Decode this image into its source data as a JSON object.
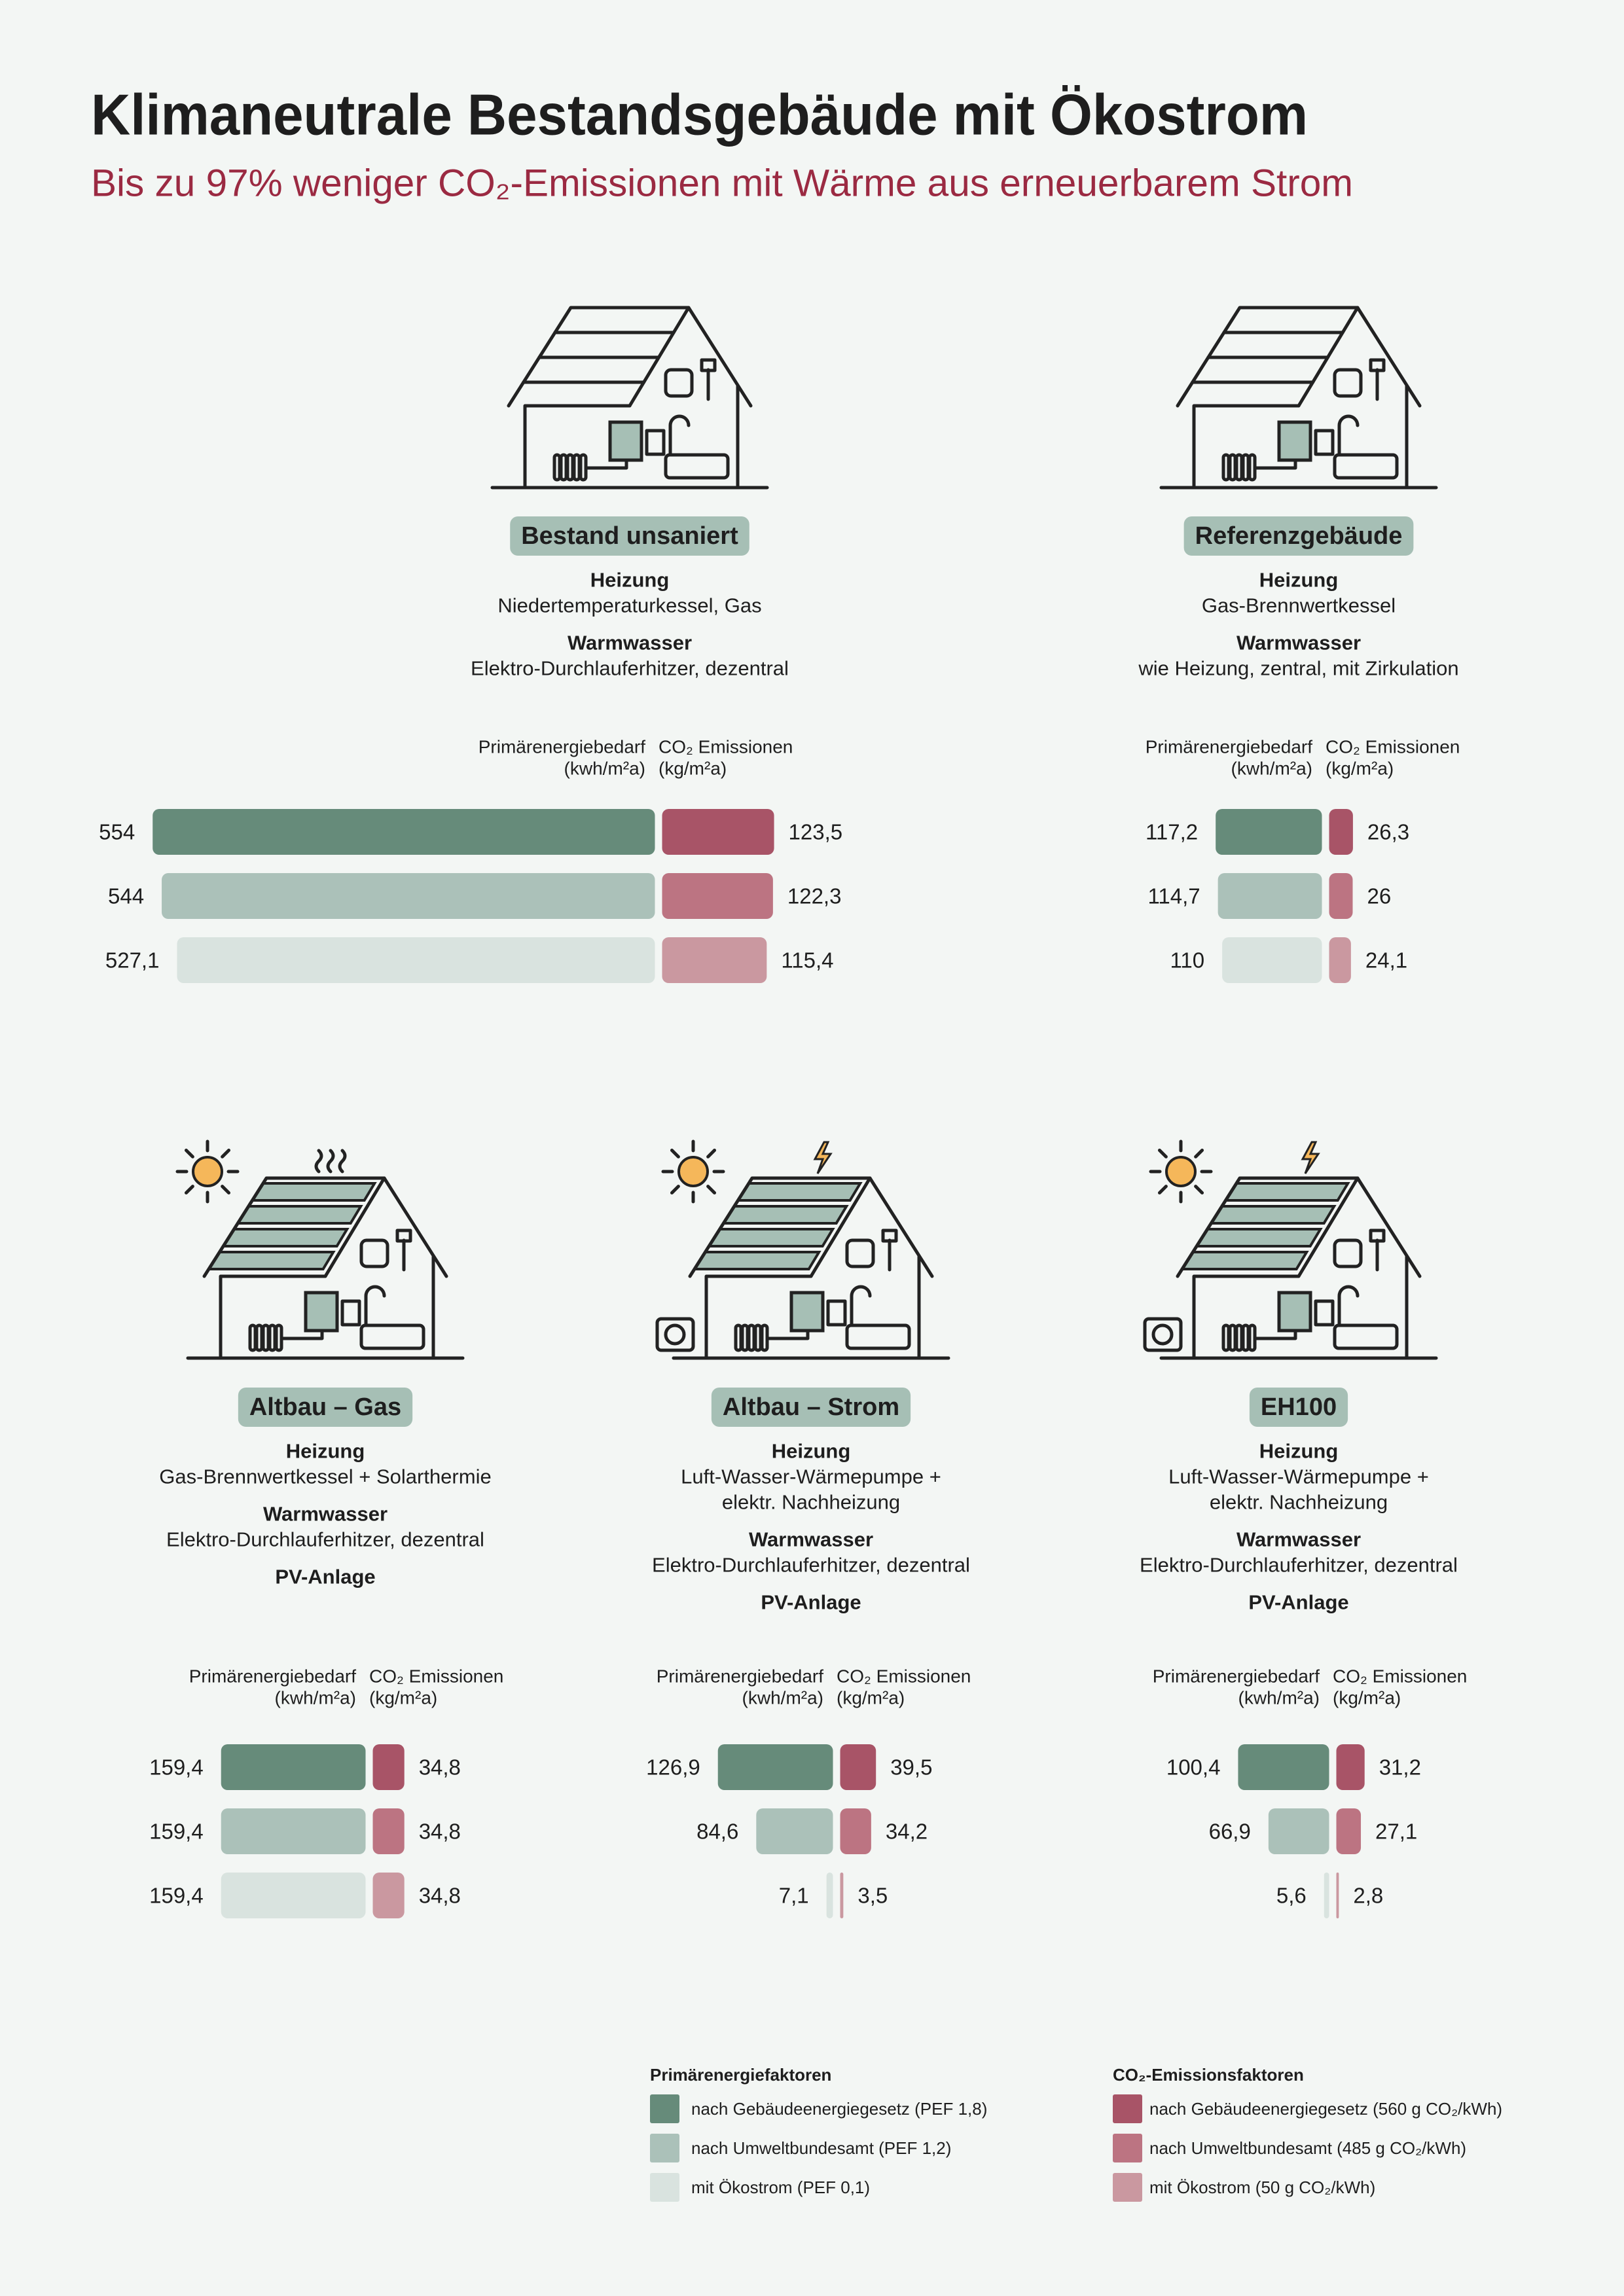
{
  "header": {
    "title": "Klimaneutrale Bestandsgebäude mit Ökostrom",
    "subtitle": "Bis zu 97% weniger CO₂-Emissionen mit Wärme aus erneuerbarem Strom"
  },
  "chart_data": [
    {
      "type": "bar",
      "title": "Bestand unsaniert",
      "details": [
        {
          "label": "Heizung",
          "lines": [
            "Niedertemperaturkessel, Gas"
          ]
        },
        {
          "label": "Warmwasser",
          "lines": [
            "Elektro-Durchlauferhitzer, dezentral"
          ]
        }
      ],
      "series": [
        {
          "name": "Primärenergiebedarf",
          "unit": "(kwh/m²a)",
          "values": [
            554,
            544,
            527.1
          ],
          "value_labels": [
            "554",
            "544",
            "527,1"
          ]
        },
        {
          "name": "CO₂ Emissionen",
          "unit": "(kg/m²a)",
          "values": [
            123.5,
            122.3,
            115.4
          ],
          "value_labels": [
            "123,5",
            "122,3",
            "115,4"
          ]
        }
      ]
    },
    {
      "type": "bar",
      "title": "Referenzgebäude",
      "details": [
        {
          "label": "Heizung",
          "lines": [
            "Gas-Brennwertkessel"
          ]
        },
        {
          "label": "Warmwasser",
          "lines": [
            "wie Heizung, zentral, mit Zirkulation"
          ]
        }
      ],
      "series": [
        {
          "name": "Primärenergiebedarf",
          "unit": "(kwh/m²a)",
          "values": [
            117.2,
            114.7,
            110
          ],
          "value_labels": [
            "117,2",
            "114,7",
            "110"
          ]
        },
        {
          "name": "CO₂ Emissionen",
          "unit": "(kg/m²a)",
          "values": [
            26.3,
            26,
            24.1
          ],
          "value_labels": [
            "26,3",
            "26",
            "24,1"
          ]
        }
      ]
    },
    {
      "type": "bar",
      "title": "Altbau – Gas",
      "details": [
        {
          "label": "Heizung",
          "lines": [
            "Gas-Brennwertkessel + Solarthermie"
          ]
        },
        {
          "label": "Warmwasser",
          "lines": [
            "Elektro-Durchlauferhitzer, dezentral"
          ]
        },
        {
          "label": "PV-Anlage"
        }
      ],
      "series": [
        {
          "name": "Primärenergiebedarf",
          "unit": "(kwh/m²a)",
          "values": [
            159.4,
            159.4,
            159.4
          ],
          "value_labels": [
            "159,4",
            "159,4",
            "159,4"
          ]
        },
        {
          "name": "CO₂ Emissionen",
          "unit": "(kg/m²a)",
          "values": [
            34.8,
            34.8,
            34.8
          ],
          "value_labels": [
            "34,8",
            "34,8",
            "34,8"
          ]
        }
      ]
    },
    {
      "type": "bar",
      "title": "Altbau – Strom",
      "details": [
        {
          "label": "Heizung",
          "lines": [
            "Luft-Wasser-Wärmepumpe +",
            "elektr. Nachheizung"
          ]
        },
        {
          "label": "Warmwasser",
          "lines": [
            "Elektro-Durchlauferhitzer, dezentral"
          ]
        },
        {
          "label": "PV-Anlage"
        }
      ],
      "series": [
        {
          "name": "Primärenergiebedarf",
          "unit": "(kwh/m²a)",
          "values": [
            126.9,
            84.6,
            7.1
          ],
          "value_labels": [
            "126,9",
            "84,6",
            "7,1"
          ]
        },
        {
          "name": "CO₂ Emissionen",
          "unit": "(kg/m²a)",
          "values": [
            39.5,
            34.2,
            3.5
          ],
          "value_labels": [
            "39,5",
            "34,2",
            "3,5"
          ]
        }
      ]
    },
    {
      "type": "bar",
      "title": "EH100",
      "details": [
        {
          "label": "Heizung",
          "lines": [
            "Luft-Wasser-Wärmepumpe +",
            "elektr. Nachheizung"
          ]
        },
        {
          "label": "Warmwasser",
          "lines": [
            "Elektro-Durchlauferhitzer, dezentral"
          ]
        },
        {
          "label": "PV-Anlage"
        }
      ],
      "series": [
        {
          "name": "Primärenergiebedarf",
          "unit": "(kwh/m²a)",
          "values": [
            100.4,
            66.9,
            5.6
          ],
          "value_labels": [
            "100,4",
            "66,9",
            "5,6"
          ]
        },
        {
          "name": "CO₂ Emissionen",
          "unit": "(kg/m²a)",
          "values": [
            31.2,
            27.1,
            2.8
          ],
          "value_labels": [
            "31,2",
            "27,1",
            "2,8"
          ]
        }
      ]
    }
  ],
  "legend": [
    {
      "title": "Primärenergiefaktoren",
      "items": [
        {
          "name": "nach Gebäudeenergiegesetz (PEF 1,8)",
          "color": "#668b7a"
        },
        {
          "name": "nach Umweltbundesamt (PEF 1,2)",
          "color": "#abc1b9"
        },
        {
          "name": "mit Ökostrom (PEF 0,1)",
          "color": "#d9e3df"
        }
      ]
    },
    {
      "title": "CO₂-Emissionsfaktoren",
      "items": [
        {
          "name": "nach Gebäudeenergiegesetz (560 g CO₂/kWh)",
          "color": "#a85467"
        },
        {
          "name": "nach Umweltbundesamt (485 g CO₂/kWh)",
          "color": "#bc7482"
        },
        {
          "name": "mit Ökostrom (50 g CO₂/kWh)",
          "color": "#ca98a0"
        }
      ]
    }
  ]
}
